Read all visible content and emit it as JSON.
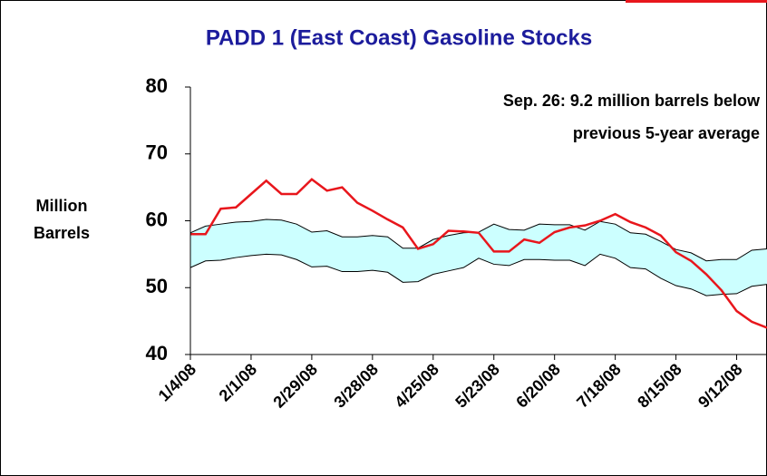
{
  "chart_data": {
    "type": "line",
    "title": "PADD 1 (East Coast) Gasoline Stocks",
    "y_label": [
      "Million",
      "Barrels"
    ],
    "annotation": [
      "Sep. 26:  9.2 million barrels below",
      "previous 5-year average"
    ],
    "categories": [
      "1/4/08",
      null,
      null,
      null,
      "2/1/08",
      null,
      null,
      null,
      "2/29/08",
      null,
      null,
      null,
      "3/28/08",
      null,
      null,
      null,
      "4/25/08",
      null,
      null,
      null,
      "5/23/08",
      null,
      null,
      null,
      "6/20/08",
      null,
      null,
      null,
      "7/18/08",
      null,
      null,
      null,
      "8/15/08",
      null,
      null,
      null,
      "9/12/08",
      null,
      null
    ],
    "series": [
      {
        "color": "#e8161c",
        "values": [
          58,
          58,
          61.8,
          62,
          64,
          66,
          64,
          64,
          66.2,
          64.5,
          65,
          62.7,
          61.5,
          60.2,
          59,
          55.8,
          56.5,
          58.5,
          58.4,
          58.2,
          55.4,
          55.4,
          57.2,
          56.7,
          58.3,
          59,
          59.3,
          60,
          61,
          59.8,
          59,
          57.8,
          55.3,
          54,
          52,
          49.6,
          46.5,
          44.9,
          44
        ]
      }
    ],
    "range_band": {
      "fill": "#ccffff",
      "upper": [
        58.2,
        59.2,
        59.5,
        59.8,
        59.9,
        60.2,
        60.1,
        59.5,
        58.3,
        58.5,
        57.6,
        57.6,
        57.8,
        57.6,
        55.9,
        55.9,
        57.2,
        57.8,
        58.2,
        58.3,
        59.5,
        58.7,
        58.6,
        59.5,
        59.4,
        59.4,
        58.6,
        59.9,
        59.5,
        58.2,
        58,
        56.9,
        55.7,
        55.2,
        54,
        54.2,
        54.2,
        55.6,
        55.8
      ],
      "lower": [
        53,
        54,
        54.1,
        54.5,
        54.8,
        55,
        54.9,
        54.2,
        53.1,
        53.2,
        52.4,
        52.4,
        52.6,
        52.3,
        50.8,
        50.9,
        52,
        52.5,
        53,
        54.4,
        53.5,
        53.3,
        54.2,
        54.2,
        54.1,
        54.1,
        53.3,
        55,
        54.4,
        53,
        52.8,
        51.4,
        50.3,
        49.8,
        48.8,
        49,
        49.1,
        50.2,
        50.5
      ]
    },
    "ylim": [
      40,
      80
    ],
    "yticks": [
      40,
      50,
      60,
      70,
      80
    ]
  }
}
